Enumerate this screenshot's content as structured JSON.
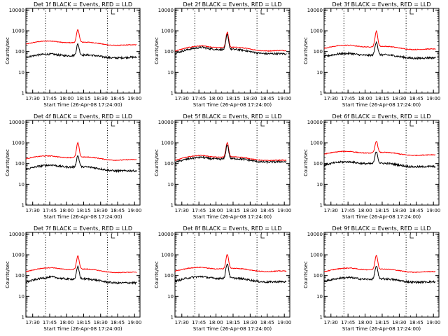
{
  "chart_data": [
    {
      "type": "line",
      "title": "Det 1f BLACK = Events, RED = LLD",
      "xlabel": "Start Time (26-Apr-08 17:24:00)",
      "ylabel": "Counts/sec",
      "x_ticklabels": [
        "17:30",
        "17:45",
        "18:00",
        "18:15",
        "18:30",
        "18:45",
        "19:00"
      ],
      "x_ticks_min": [
        17.5,
        17.75,
        18.0,
        18.25,
        18.5,
        18.75,
        19.0
      ],
      "xlim": [
        17.4,
        19.08
      ],
      "y_ticklabels": [
        "1",
        "10",
        "100",
        "1000",
        "10000"
      ],
      "ylim": [
        1,
        12000
      ],
      "yscale": "log",
      "vlines": [
        17.69,
        18.6
      ],
      "series": [
        {
          "color": "#ff0000",
          "base": [
            240,
            320,
            190
          ],
          "peak": 1150
        },
        {
          "color": "#000000",
          "base": [
            55,
            75,
            48
          ],
          "peak": 230
        }
      ]
    },
    {
      "type": "line",
      "title": "Det 2f BLACK = Events, RED = LLD",
      "xlabel": "Start Time (26-Apr-08 17:24:00)",
      "ylabel": "Counts/sec",
      "x_ticklabels": [
        "17:30",
        "17:45",
        "18:00",
        "18:15",
        "18:30",
        "18:45",
        "19:00"
      ],
      "x_ticks_min": [
        17.5,
        17.75,
        18.0,
        18.25,
        18.5,
        18.75,
        19.0
      ],
      "xlim": [
        17.4,
        19.08
      ],
      "y_ticklabels": [
        "1",
        "10",
        "100",
        "1000",
        "10000"
      ],
      "ylim": [
        1,
        12000
      ],
      "yscale": "log",
      "vlines": [
        17.69,
        18.6
      ],
      "series": [
        {
          "color": "#ff0000",
          "base": [
            110,
            190,
            100
          ],
          "peak": 850
        },
        {
          "color": "#000000",
          "base": [
            85,
            160,
            70
          ],
          "peak": 650
        }
      ]
    },
    {
      "type": "line",
      "title": "Det 3f BLACK = Events, RED = LLD",
      "xlabel": "Start Time (26-Apr-08 17:24:00)",
      "ylabel": "Counts/sec",
      "x_ticklabels": [
        "17:30",
        "17:45",
        "18:00",
        "18:15",
        "18:30",
        "18:45",
        "19:00"
      ],
      "x_ticks_min": [
        17.5,
        17.75,
        18.0,
        18.25,
        18.5,
        18.75,
        19.0
      ],
      "xlim": [
        17.4,
        19.08
      ],
      "y_ticklabels": [
        "1",
        "10",
        "100",
        "1000",
        "10000"
      ],
      "ylim": [
        1,
        12000
      ],
      "yscale": "log",
      "vlines": [
        17.69,
        18.6
      ],
      "series": [
        {
          "color": "#ff0000",
          "base": [
            150,
            200,
            120
          ],
          "peak": 950
        },
        {
          "color": "#000000",
          "base": [
            60,
            80,
            45
          ],
          "peak": 300
        }
      ]
    },
    {
      "type": "line",
      "title": "Det 4f BLACK = Events, RED = LLD",
      "xlabel": "Start Time (26-Apr-08 17:24:00)",
      "ylabel": "Counts/sec",
      "x_ticklabels": [
        "17:30",
        "17:45",
        "18:00",
        "18:15",
        "18:30",
        "18:45",
        "19:00"
      ],
      "x_ticks_min": [
        17.5,
        17.75,
        18.0,
        18.25,
        18.5,
        18.75,
        19.0
      ],
      "xlim": [
        17.4,
        19.08
      ],
      "y_ticklabels": [
        "1",
        "10",
        "100",
        "1000",
        "10000"
      ],
      "ylim": [
        1,
        12000
      ],
      "yscale": "log",
      "vlines": [
        17.69,
        18.6
      ],
      "series": [
        {
          "color": "#ff0000",
          "base": [
            180,
            230,
            140
          ],
          "peak": 1000
        },
        {
          "color": "#000000",
          "base": [
            55,
            85,
            40
          ],
          "peak": 240
        }
      ]
    },
    {
      "type": "line",
      "title": "Det 5f BLACK = Events, RED = LLD",
      "xlabel": "Start Time (26-Apr-08 17:24:00)",
      "ylabel": "Counts/sec",
      "x_ticklabels": [
        "17:30",
        "17:45",
        "18:00",
        "18:15",
        "18:30",
        "18:45",
        "19:00"
      ],
      "x_ticks_min": [
        17.5,
        17.75,
        18.0,
        18.25,
        18.5,
        18.75,
        19.0
      ],
      "xlim": [
        17.4,
        19.08
      ],
      "y_ticklabels": [
        "1",
        "10",
        "100",
        "1000",
        "10000"
      ],
      "ylim": [
        1,
        12000
      ],
      "yscale": "log",
      "vlines": [
        17.69,
        18.6
      ],
      "series": [
        {
          "color": "#ff0000",
          "base": [
            150,
            250,
            130
          ],
          "peak": 1000
        },
        {
          "color": "#000000",
          "base": [
            120,
            200,
            110
          ],
          "peak": 800
        }
      ]
    },
    {
      "type": "line",
      "title": "Det 6f BLACK = Events, RED = LLD",
      "xlabel": "Start Time (26-Apr-08 17:24:00)",
      "ylabel": "Counts/sec",
      "x_ticklabels": [
        "17:30",
        "17:45",
        "18:00",
        "18:15",
        "18:30",
        "18:45",
        "19:00"
      ],
      "x_ticks_min": [
        17.5,
        17.75,
        18.0,
        18.25,
        18.5,
        18.75,
        19.0
      ],
      "xlim": [
        17.4,
        19.08
      ],
      "y_ticklabels": [
        "1",
        "10",
        "100",
        "1000",
        "10000"
      ],
      "ylim": [
        1,
        12000
      ],
      "yscale": "log",
      "vlines": [
        17.69,
        18.6
      ],
      "series": [
        {
          "color": "#ff0000",
          "base": [
            300,
            380,
            240
          ],
          "peak": 1200
        },
        {
          "color": "#000000",
          "base": [
            90,
            120,
            65
          ],
          "peak": 380
        }
      ]
    },
    {
      "type": "line",
      "title": "Det 7f BLACK = Events, RED = LLD",
      "xlabel": "Start Time (26-Apr-08 17:24:00)",
      "ylabel": "Counts/sec",
      "x_ticklabels": [
        "17:30",
        "17:45",
        "18:00",
        "18:15",
        "18:30",
        "18:45",
        "19:00"
      ],
      "x_ticks_min": [
        17.5,
        17.75,
        18.0,
        18.25,
        18.5,
        18.75,
        19.0
      ],
      "xlim": [
        17.4,
        19.08
      ],
      "y_ticklabels": [
        "1",
        "10",
        "100",
        "1000",
        "10000"
      ],
      "ylim": [
        1,
        12000
      ],
      "yscale": "log",
      "vlines": [
        17.69,
        18.6
      ],
      "series": [
        {
          "color": "#ff0000",
          "base": [
            160,
            240,
            130
          ],
          "peak": 900
        },
        {
          "color": "#000000",
          "base": [
            50,
            85,
            40
          ],
          "peak": 260
        }
      ]
    },
    {
      "type": "line",
      "title": "Det 8f BLACK = Events, RED = LLD",
      "xlabel": "Start Time (26-Apr-08 17:24:00)",
      "ylabel": "Counts/sec",
      "x_ticklabels": [
        "17:30",
        "17:45",
        "18:00",
        "18:15",
        "18:30",
        "18:45",
        "19:00"
      ],
      "x_ticks_min": [
        17.5,
        17.75,
        18.0,
        18.25,
        18.5,
        18.75,
        19.0
      ],
      "xlim": [
        17.4,
        19.08
      ],
      "y_ticklabels": [
        "1",
        "10",
        "100",
        "1000",
        "10000"
      ],
      "ylim": [
        1,
        12000
      ],
      "yscale": "log",
      "vlines": [
        17.69,
        18.6
      ],
      "series": [
        {
          "color": "#ff0000",
          "base": [
            170,
            250,
            150
          ],
          "peak": 1050
        },
        {
          "color": "#000000",
          "base": [
            55,
            90,
            45
          ],
          "peak": 380
        }
      ]
    },
    {
      "type": "line",
      "title": "Det 9f BLACK = Events, RED = LLD",
      "xlabel": "Start Time (26-Apr-08 17:24:00)",
      "ylabel": "Counts/sec",
      "x_ticklabels": [
        "17:30",
        "17:45",
        "18:00",
        "18:15",
        "18:30",
        "18:45",
        "19:00"
      ],
      "x_ticks_min": [
        17.5,
        17.75,
        18.0,
        18.25,
        18.5,
        18.75,
        19.0
      ],
      "xlim": [
        17.4,
        19.08
      ],
      "y_ticklabels": [
        "1",
        "10",
        "100",
        "1000",
        "10000"
      ],
      "ylim": [
        1,
        12000
      ],
      "yscale": "log",
      "vlines": [
        17.69,
        18.6
      ],
      "series": [
        {
          "color": "#ff0000",
          "base": [
            160,
            230,
            140
          ],
          "peak": 950
        },
        {
          "color": "#000000",
          "base": [
            55,
            80,
            45
          ],
          "peak": 290
        }
      ]
    }
  ]
}
